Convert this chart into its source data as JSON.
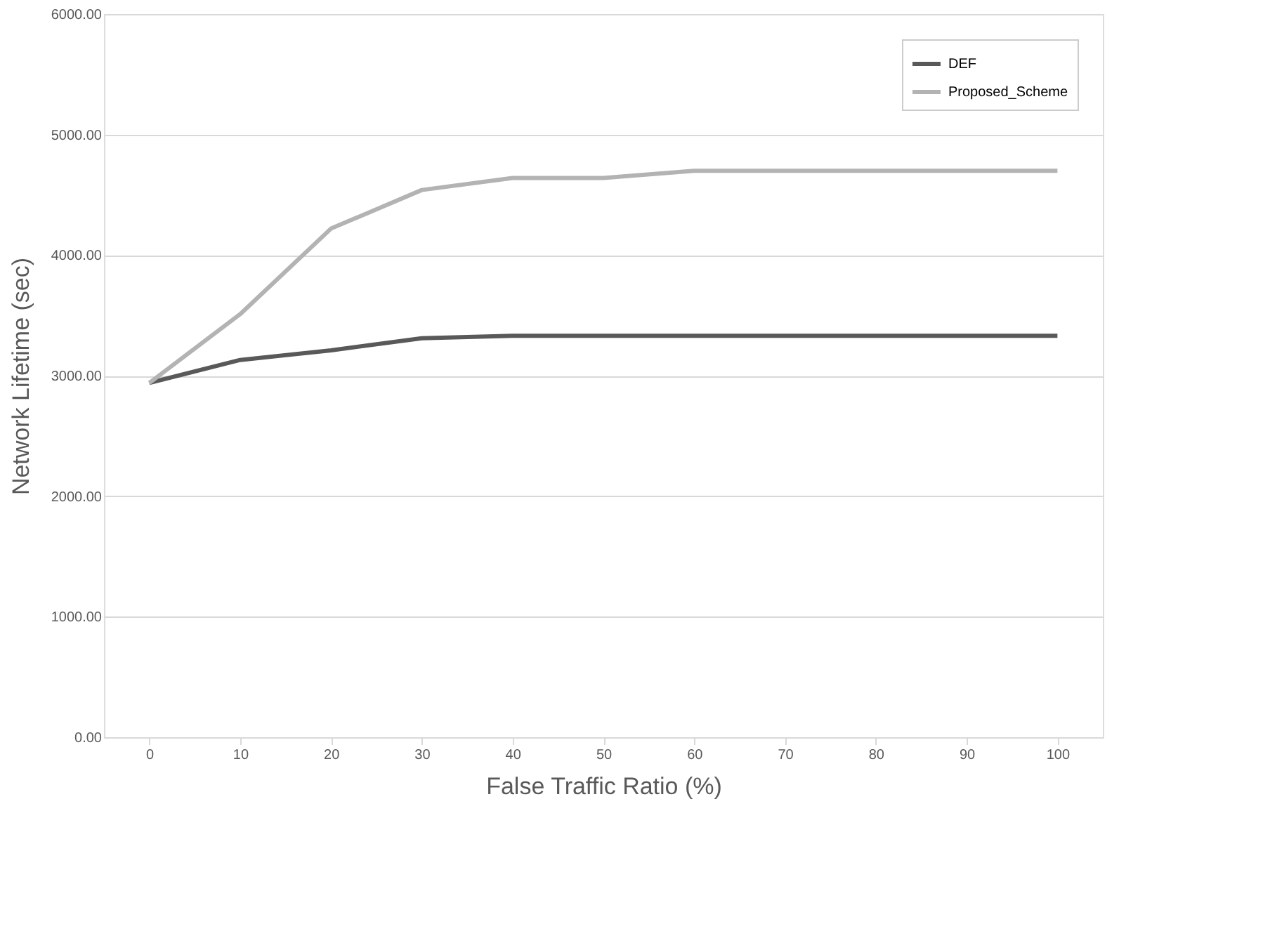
{
  "chart_data": {
    "type": "line",
    "xlabel": "False Traffic Ratio (%)",
    "ylabel": "Network Lifetime (sec)",
    "categories": [
      "0",
      "10",
      "20",
      "30",
      "40",
      "50",
      "60",
      "70",
      "80",
      "90",
      "100"
    ],
    "series": [
      {
        "name": "DEF",
        "color": "#595959",
        "values": [
          2940,
          3130,
          3210,
          3310,
          3330,
          3330,
          3330,
          3330,
          3330,
          3330,
          3330
        ]
      },
      {
        "name": "Proposed_Scheme",
        "color": "#b3b3b3",
        "values": [
          2940,
          3510,
          4220,
          4540,
          4640,
          4640,
          4700,
          4700,
          4700,
          4700,
          4700
        ]
      }
    ],
    "ylim": [
      0,
      6000
    ],
    "yticks": [
      {
        "value": 0,
        "label": "0.00"
      },
      {
        "value": 1000,
        "label": "1000.00"
      },
      {
        "value": 2000,
        "label": "2000.00"
      },
      {
        "value": 3000,
        "label": "3000.00"
      },
      {
        "value": 4000,
        "label": "4000.00"
      },
      {
        "value": 5000,
        "label": "5000.00"
      },
      {
        "value": 6000,
        "label": "6000.00"
      }
    ],
    "grid": "y",
    "legend": "top right",
    "marker": "none",
    "line_style": "solid"
  }
}
